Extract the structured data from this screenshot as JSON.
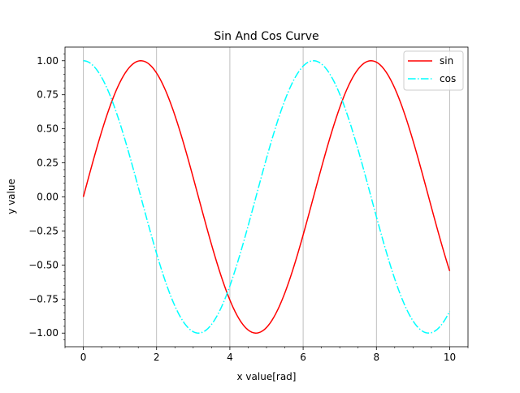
{
  "chart_data": {
    "type": "line",
    "title": "Sin And Cos Curve",
    "xlabel": "x value[rad]",
    "ylabel": "y value",
    "xlim": [
      -0.5,
      10.5
    ],
    "ylim": [
      -1.1,
      1.1
    ],
    "x_ticks": [
      0,
      2,
      4,
      6,
      8,
      10
    ],
    "x_tick_labels": [
      "0",
      "2",
      "4",
      "6",
      "8",
      "10"
    ],
    "y_ticks": [
      -1.0,
      -0.75,
      -0.5,
      -0.25,
      0.0,
      0.25,
      0.5,
      0.75,
      1.0
    ],
    "y_tick_labels": [
      "−1.00",
      "−0.75",
      "−0.50",
      "−0.25",
      "0.00",
      "0.25",
      "0.50",
      "0.75",
      "1.00"
    ],
    "grid": "x-major",
    "x_range": [
      0,
      10
    ],
    "samples": 200,
    "series": [
      {
        "name": "sin",
        "function": "sin(x)",
        "color": "#ff0000",
        "style": "solid"
      },
      {
        "name": "cos",
        "function": "cos(x)",
        "color": "#00ffff",
        "style": "dashdot"
      }
    ],
    "legend_placement": "top-right"
  }
}
